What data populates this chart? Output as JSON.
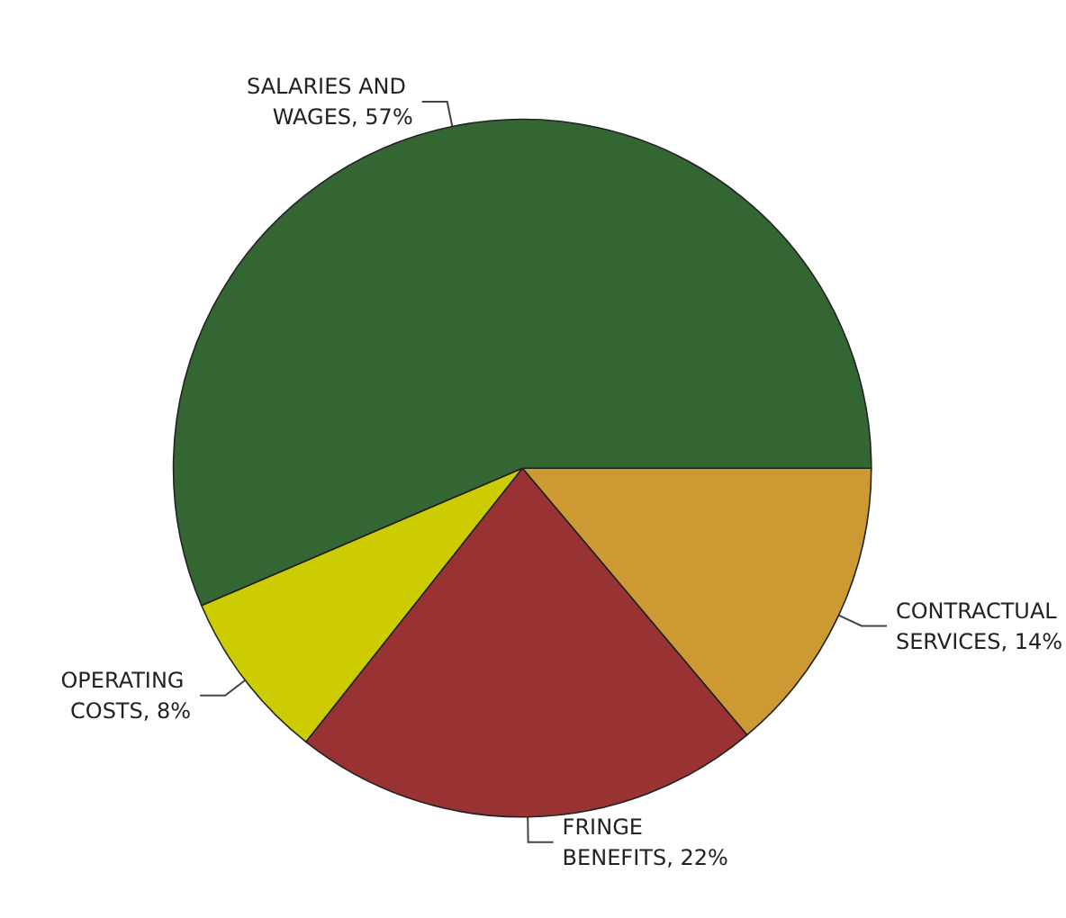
{
  "chart_data": {
    "type": "pie",
    "categories": [
      "CONTRACTUAL SERVICES",
      "FRINGE BENEFITS",
      "OPERATING COSTS",
      "SALARIES AND WAGES"
    ],
    "values": [
      14,
      22,
      8,
      57
    ],
    "value_labels": [
      "14%",
      "22%",
      "8%",
      "57%"
    ],
    "colors": [
      "#cc9933",
      "#993333",
      "#cccc00",
      "#336633"
    ]
  }
}
